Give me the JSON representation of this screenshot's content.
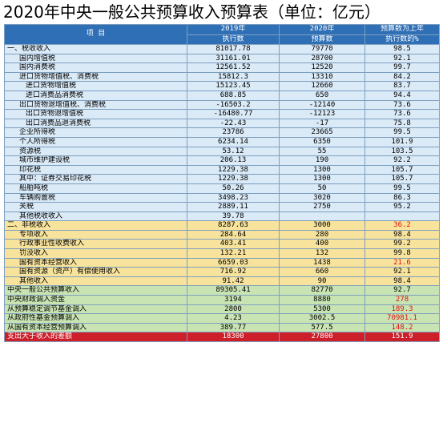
{
  "title": "2020年中央一般公共预算收入预算表（单位：亿元）",
  "header": {
    "item": "项        目",
    "col2_top": "2019年",
    "col2_bottom": "执行数",
    "col3_top": "2020年",
    "col3_bottom": "预算数",
    "col4_top": "预算数为上年",
    "col4_bottom": "执行数的%"
  },
  "rows": [
    {
      "label": "一、税收收入",
      "v2019": "81017.78",
      "v2020": "79770",
      "pct": "98.5"
    },
    {
      "label": "国内增值税",
      "v2019": "31161.01",
      "v2020": "28700",
      "pct": "92.1"
    },
    {
      "label": "国内消费税",
      "v2019": "12561.52",
      "v2020": "12520",
      "pct": "99.7"
    },
    {
      "label": "进口货物增值税、消费税",
      "v2019": "15812.3",
      "v2020": "13310",
      "pct": "84.2"
    },
    {
      "label": "进口货物增值税",
      "v2019": "15123.45",
      "v2020": "12660",
      "pct": "83.7"
    },
    {
      "label": "进口消费品消费税",
      "v2019": "688.85",
      "v2020": "650",
      "pct": "94.4"
    },
    {
      "label": "出口货物退增值税、消费税",
      "v2019": "-16503.2",
      "v2020": "-12140",
      "pct": "73.6"
    },
    {
      "label": "出口货物退增值税",
      "v2019": "-16480.77",
      "v2020": "-12123",
      "pct": "73.6"
    },
    {
      "label": "出口消费品退消费税",
      "v2019": "-22.43",
      "v2020": "-17",
      "pct": "75.8"
    },
    {
      "label": "企业所得税",
      "v2019": "23786",
      "v2020": "23665",
      "pct": "99.5"
    },
    {
      "label": "个人所得税",
      "v2019": "6234.14",
      "v2020": "6350",
      "pct": "101.9"
    },
    {
      "label": "资源税",
      "v2019": "53.12",
      "v2020": "55",
      "pct": "103.5"
    },
    {
      "label": "城市维护建设税",
      "v2019": "206.13",
      "v2020": "190",
      "pct": "92.2"
    },
    {
      "label": "印花税",
      "v2019": "1229.38",
      "v2020": "1300",
      "pct": "105.7"
    },
    {
      "label": "其中：证券交易印花税",
      "v2019": "1229.38",
      "v2020": "1300",
      "pct": "105.7"
    },
    {
      "label": "船舶吨税",
      "v2019": "50.26",
      "v2020": "50",
      "pct": "99.5"
    },
    {
      "label": "车辆购置税",
      "v2019": "3498.23",
      "v2020": "3020",
      "pct": "86.3"
    },
    {
      "label": "关税",
      "v2019": "2889.11",
      "v2020": "2750",
      "pct": "95.2"
    },
    {
      "label": "其他税收收入",
      "v2019": "39.78",
      "v2020": "",
      "pct": ""
    },
    {
      "label": "二、非税收入",
      "v2019": "8287.63",
      "v2020": "3000",
      "pct": "36.2"
    },
    {
      "label": "专项收入",
      "v2019": "284.64",
      "v2020": "280",
      "pct": "98.4"
    },
    {
      "label": "行政事业性收费收入",
      "v2019": "403.41",
      "v2020": "400",
      "pct": "99.2"
    },
    {
      "label": "罚没收入",
      "v2019": "132.21",
      "v2020": "132",
      "pct": "99.8"
    },
    {
      "label": "国有资本经营收入",
      "v2019": "6659.03",
      "v2020": "1438",
      "pct": "21.6"
    },
    {
      "label": "国有资源（资产）有偿使用收入",
      "v2019": "716.92",
      "v2020": "660",
      "pct": "92.1"
    },
    {
      "label": "其他收入",
      "v2019": "91.42",
      "v2020": "90",
      "pct": "98.4"
    },
    {
      "label": "中央一般公共预算收入",
      "v2019": "89305.41",
      "v2020": "82770",
      "pct": "92.7"
    },
    {
      "label": "中央财政调入资金",
      "v2019": "3194",
      "v2020": "8880",
      "pct": "278"
    },
    {
      "label": "从预算稳定调节基金调入",
      "v2019": "2800",
      "v2020": "5300",
      "pct": "189.3"
    },
    {
      "label": "从政府性基金预算调入",
      "v2019": "4.23",
      "v2020": "3002.5",
      "pct": "70981.1"
    },
    {
      "label": "从国有资本经营预算调入",
      "v2019": "389.77",
      "v2020": "577.5",
      "pct": "148.2"
    },
    {
      "label": "支出大于收入的差额",
      "v2019": "18300",
      "v2020": "27800",
      "pct": "151.9"
    }
  ],
  "colors": {
    "header_blue": "#2f6fb5",
    "tax_rows": "#daeaf7",
    "nontax_rows": "#f7e39b",
    "transfer_rows": "#c9e4b3",
    "deficit_row": "#cc1f2a",
    "highlight_red_text": "#e01010"
  }
}
